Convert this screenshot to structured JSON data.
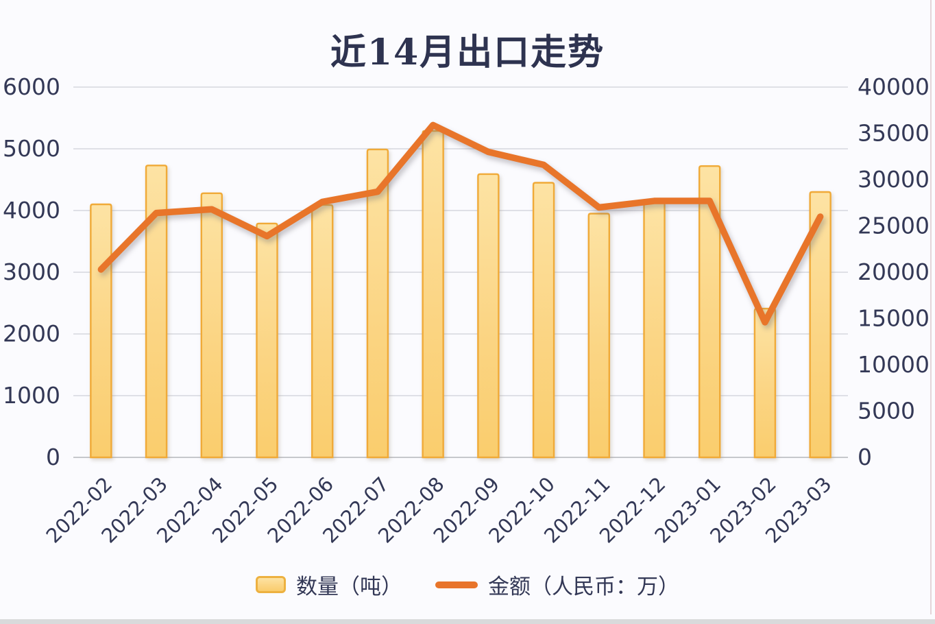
{
  "chart_data": {
    "type": "bar+line combo",
    "title": "近14月出口走势",
    "categories": [
      "2022-02",
      "2022-03",
      "2022-04",
      "2022-05",
      "2022-06",
      "2022-07",
      "2022-08",
      "2022-09",
      "2022-10",
      "2022-11",
      "2022-12",
      "2023-01",
      "2023-02",
      "2023-03"
    ],
    "series": [
      {
        "name": "数量（吨）",
        "type": "bar",
        "axis": "left",
        "values": [
          4100,
          4730,
          4280,
          3790,
          4090,
          4990,
          5290,
          4590,
          4450,
          3950,
          4130,
          4720,
          2410,
          4300
        ]
      },
      {
        "name": "金额（人民币：万）",
        "type": "line",
        "axis": "right",
        "values": [
          20300,
          26400,
          26800,
          23900,
          27600,
          28700,
          35900,
          33000,
          31600,
          27000,
          27700,
          27700,
          14600,
          26000
        ]
      }
    ],
    "left_axis": {
      "min": 0,
      "max": 6000,
      "step": 1000,
      "ticks": [
        0,
        1000,
        2000,
        3000,
        4000,
        5000,
        6000
      ]
    },
    "right_axis": {
      "min": 0,
      "max": 40000,
      "step": 5000,
      "ticks": [
        0,
        5000,
        10000,
        15000,
        20000,
        25000,
        30000,
        35000,
        40000
      ]
    },
    "grid": true,
    "legend_position": "bottom"
  },
  "colors": {
    "bar_fill_top": "#fde3a4",
    "bar_fill_bottom": "#facd6d",
    "bar_border": "#f0aa38",
    "line": "#e8752a",
    "gridline": "#d6d7dd",
    "axis_line": "#bfc0c4",
    "text": "#333856",
    "background": "#fbfbfe"
  }
}
